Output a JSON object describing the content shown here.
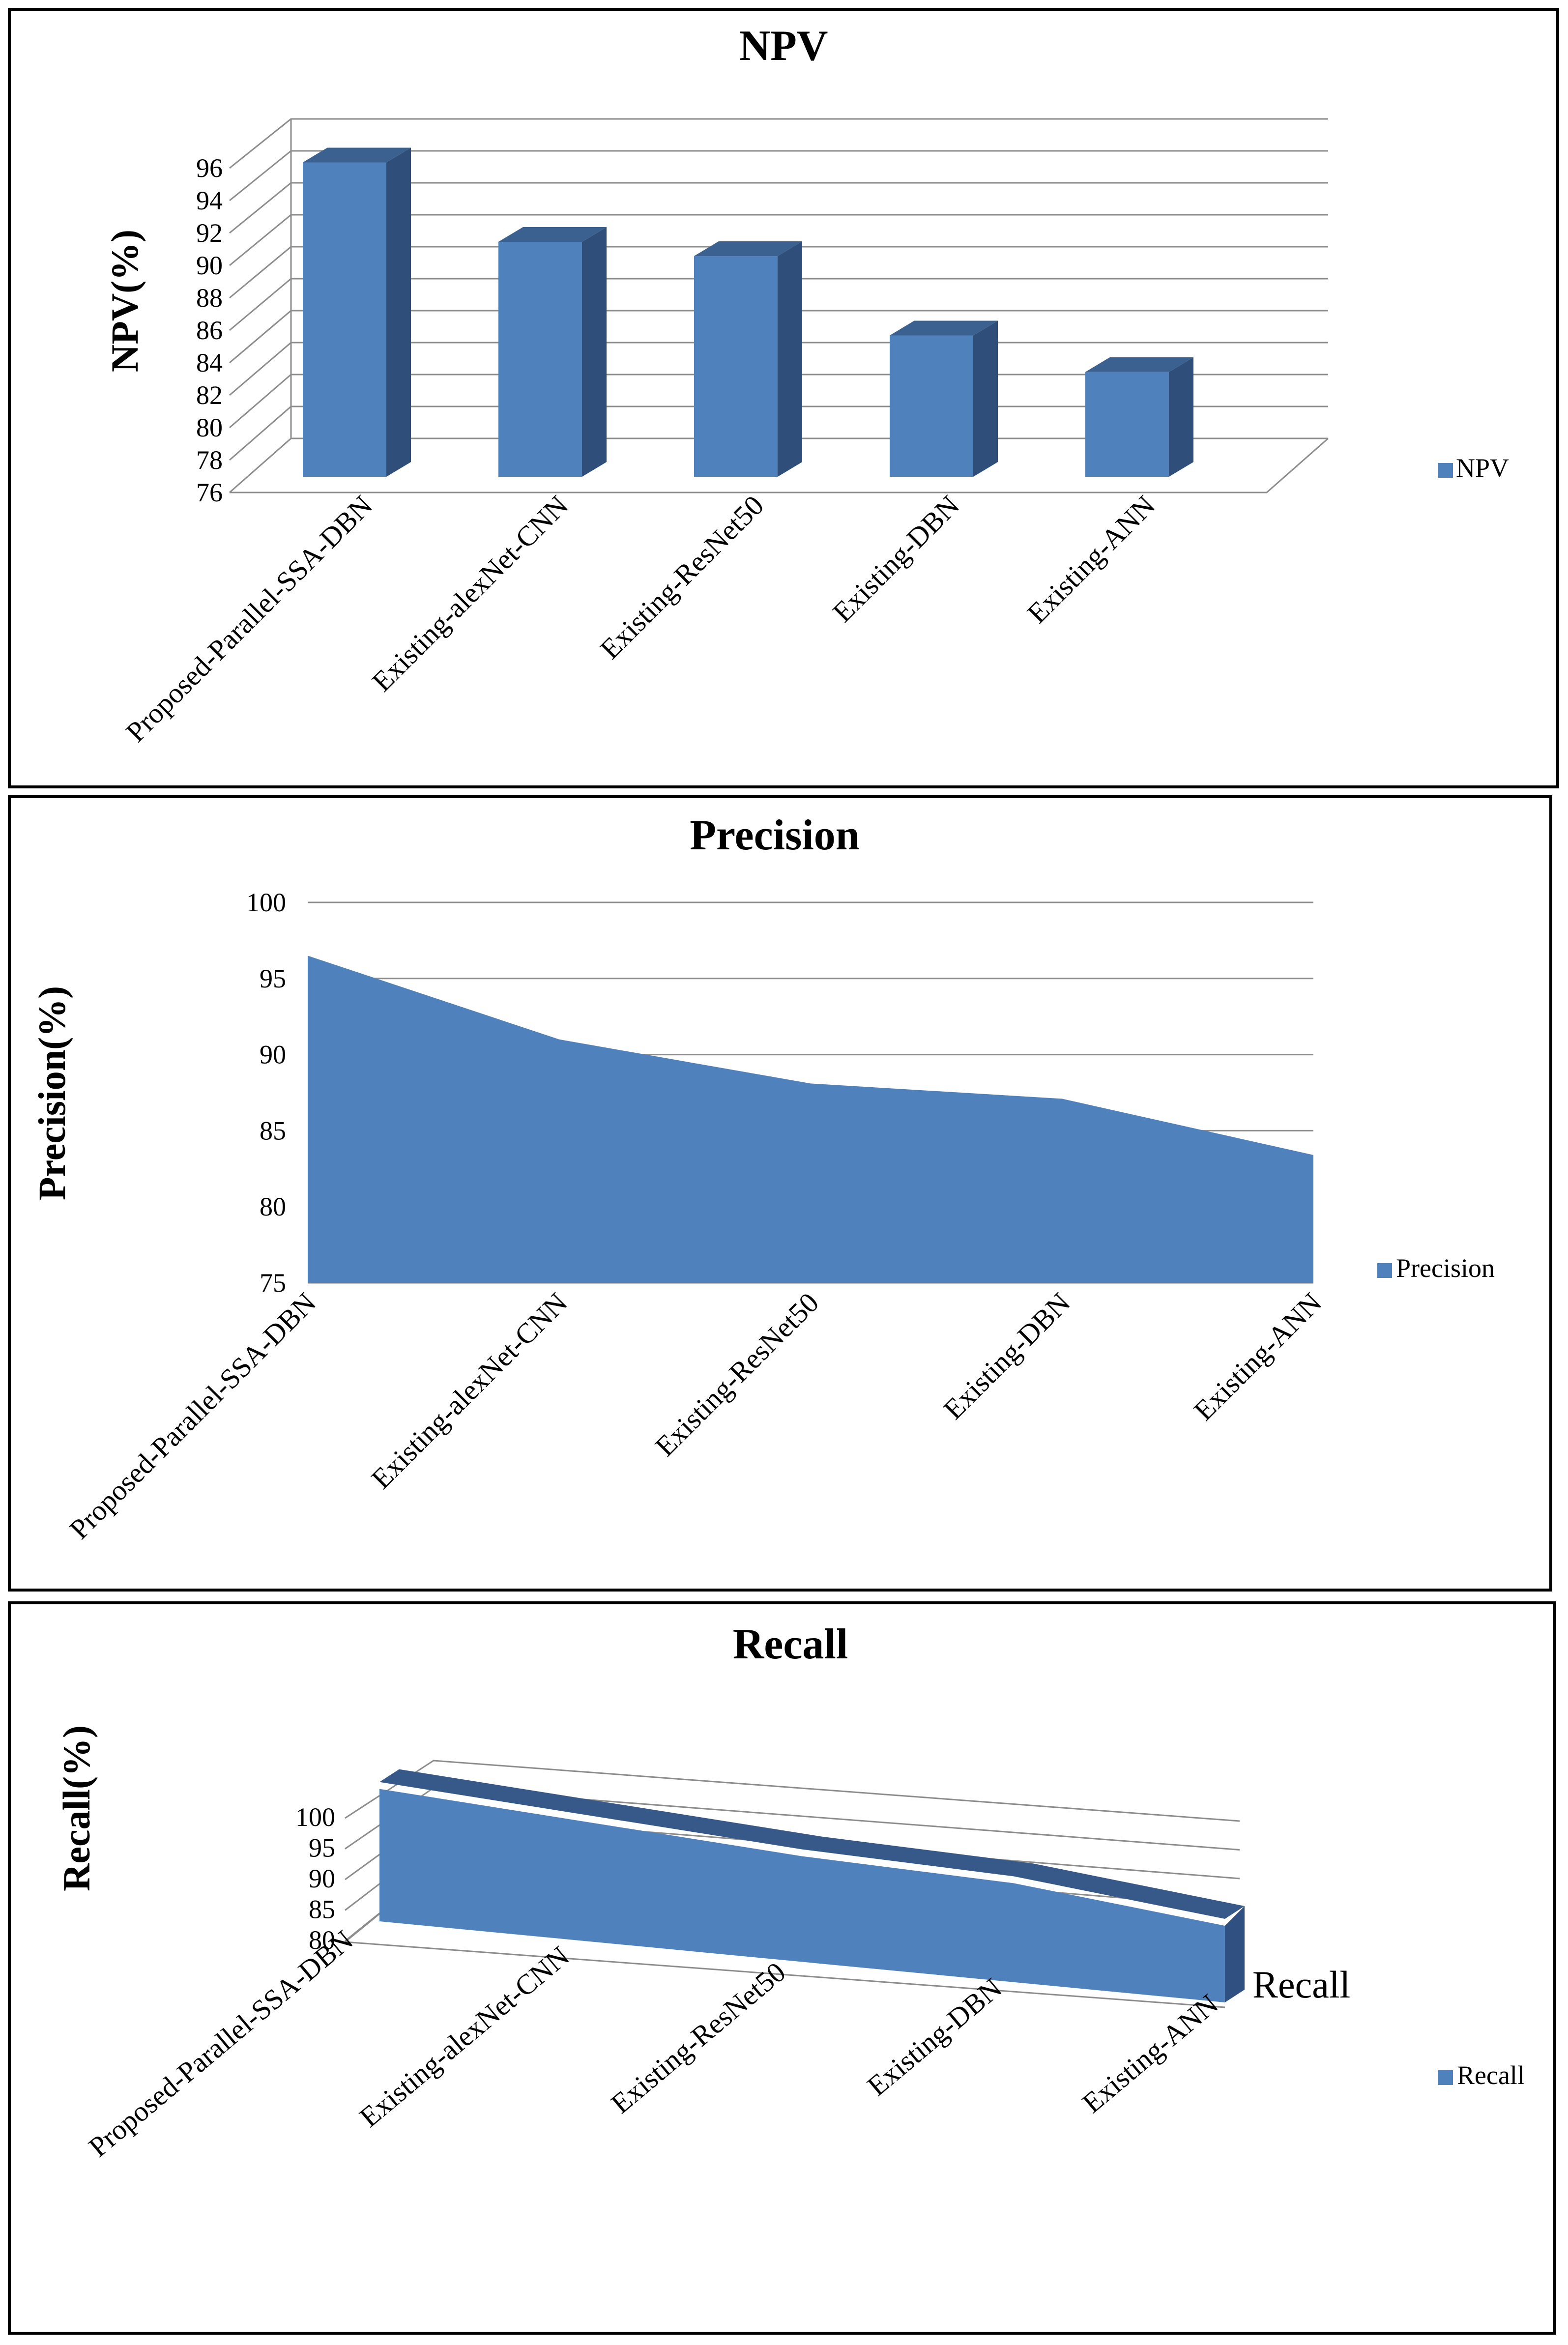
{
  "chart_data": [
    {
      "id": "npv",
      "type": "bar",
      "title": "NPV",
      "xlabel": "",
      "ylabel": "NPV(%)",
      "categories": [
        "Proposed-Parallel-SSA-DBN",
        "Existing-alexNet-CNN",
        "Existing-ResNet50",
        "Existing-DBN",
        "Existing-ANN"
      ],
      "series": [
        {
          "name": "NPV",
          "values": [
            95.8,
            90.8,
            89.9,
            84.9,
            82.6
          ]
        }
      ],
      "ylim": [
        76,
        96
      ],
      "ticks": [
        "76",
        "78",
        "80",
        "82",
        "84",
        "86",
        "88",
        "90",
        "92",
        "94",
        "96"
      ],
      "legend": "right",
      "grid": true,
      "color": "#4f81bd"
    },
    {
      "id": "precision",
      "type": "area",
      "title": "Precision",
      "xlabel": "",
      "ylabel": "Precision(%)",
      "categories": [
        "Proposed-Parallel-SSA-DBN",
        "Existing-alexNet-CNN",
        "Existing-ResNet50",
        "Existing-DBN",
        "Existing-ANN"
      ],
      "series": [
        {
          "name": "Precision",
          "values": [
            96.5,
            91.0,
            88.1,
            87.1,
            83.4
          ]
        }
      ],
      "ylim": [
        75,
        100
      ],
      "ticks": [
        "75",
        "80",
        "85",
        "90",
        "95",
        "100"
      ],
      "legend": "right",
      "grid": true,
      "color": "#4f81bd"
    },
    {
      "id": "recall",
      "type": "area",
      "title": "Recall",
      "xlabel": "",
      "ylabel": "Recall(%)",
      "categories": [
        "Proposed-Parallel-SSA-DBN",
        "Existing-alexNet-CNN",
        "Existing-ResNet50",
        "Existing-DBN",
        "Existing-ANN"
      ],
      "series": [
        {
          "name": "Recall",
          "values": [
            98.5,
            95.5,
            92.5,
            91.0,
            86.0
          ]
        }
      ],
      "ylim": [
        80,
        100
      ],
      "ticks": [
        "80",
        "85",
        "90",
        "95",
        "100"
      ],
      "depth_label": "Recall",
      "legend": "right",
      "grid": true,
      "color": "#4f81bd"
    }
  ]
}
